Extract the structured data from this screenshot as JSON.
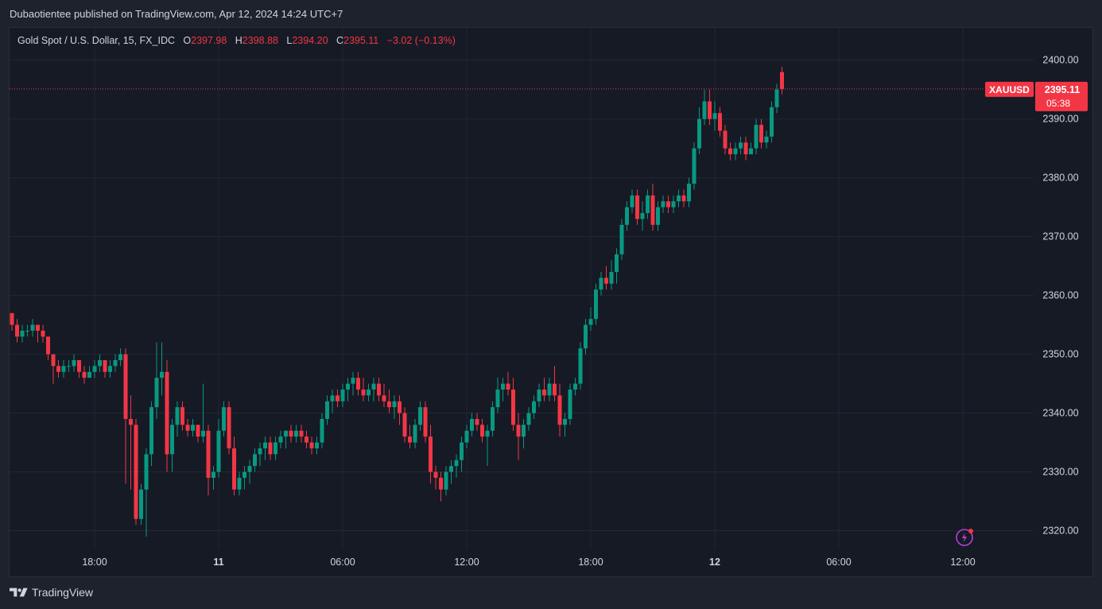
{
  "header": {
    "publisher_line": "Dubaotientee published on TradingView.com, Apr 12, 2024 14:24 UTC+7"
  },
  "legend": {
    "symbol": "Gold Spot / U.S. Dollar, 15, FX_IDC",
    "o_label": "O",
    "o_value": "2397.98",
    "h_label": "H",
    "h_value": "2398.88",
    "l_label": "L",
    "l_value": "2394.20",
    "c_label": "C",
    "c_value": "2395.11",
    "change": "−3.02 (−0.13%)"
  },
  "price_badge": {
    "symbol": "XAUUSD",
    "price": "2395.11",
    "countdown": "05:38"
  },
  "footer": {
    "brand": "TradingView"
  },
  "colors": {
    "up": "#089981",
    "down": "#f23645",
    "grid": "#232733",
    "text": "#d1d4dc",
    "accent": "#b33fd9"
  },
  "icons": {
    "flash": "flash-icon",
    "logo": "tradingview-logo-icon"
  },
  "chart_data": {
    "type": "candlestick",
    "ylim": [
      2312.5,
      2405.5
    ],
    "y_ticks": [
      "2320.00",
      "2330.00",
      "2340.00",
      "2350.00",
      "2360.00",
      "2370.00",
      "2380.00",
      "2390.00",
      "2400.00"
    ],
    "x_ticks": [
      {
        "label": "18:00",
        "bold": false,
        "index": 16
      },
      {
        "label": "11",
        "bold": true,
        "index": 40
      },
      {
        "label": "06:00",
        "bold": false,
        "index": 64
      },
      {
        "label": "12:00",
        "bold": false,
        "index": 88
      },
      {
        "label": "18:00",
        "bold": false,
        "index": 112
      },
      {
        "label": "12",
        "bold": true,
        "index": 136
      },
      {
        "label": "06:00",
        "bold": false,
        "index": 160
      },
      {
        "label": "12:00",
        "bold": false,
        "index": 184
      }
    ],
    "last_price": 2395.11,
    "candles": [
      [
        2357,
        2357,
        2354,
        2355
      ],
      [
        2355,
        2356,
        2352,
        2353
      ],
      [
        2353,
        2355,
        2352,
        2354
      ],
      [
        2354,
        2355,
        2353,
        2354
      ],
      [
        2354,
        2356,
        2353,
        2355
      ],
      [
        2355,
        2355,
        2352,
        2354
      ],
      [
        2354,
        2355,
        2352,
        2353
      ],
      [
        2353,
        2353,
        2349,
        2350
      ],
      [
        2350,
        2350,
        2345,
        2348
      ],
      [
        2348,
        2349,
        2346,
        2347
      ],
      [
        2347,
        2349,
        2346,
        2348
      ],
      [
        2348,
        2349,
        2347,
        2348
      ],
      [
        2348,
        2350,
        2347,
        2349
      ],
      [
        2349,
        2349,
        2346,
        2347
      ],
      [
        2347,
        2348,
        2345,
        2346
      ],
      [
        2346,
        2348,
        2346,
        2347
      ],
      [
        2347,
        2349,
        2346,
        2348
      ],
      [
        2348,
        2350,
        2347,
        2349
      ],
      [
        2349,
        2349,
        2346,
        2347
      ],
      [
        2347,
        2349,
        2346,
        2348
      ],
      [
        2348,
        2350,
        2347,
        2349
      ],
      [
        2349,
        2351,
        2348,
        2350
      ],
      [
        2350,
        2351,
        2328,
        2339
      ],
      [
        2339,
        2343,
        2327,
        2338
      ],
      [
        2338,
        2339,
        2321,
        2322
      ],
      [
        2322,
        2328,
        2321,
        2327
      ],
      [
        2327,
        2334,
        2319,
        2333
      ],
      [
        2333,
        2342,
        2331,
        2341
      ],
      [
        2341,
        2352,
        2339,
        2346
      ],
      [
        2346,
        2352,
        2343,
        2347
      ],
      [
        2347,
        2349,
        2330,
        2333
      ],
      [
        2333,
        2339,
        2330,
        2338
      ],
      [
        2338,
        2342,
        2336,
        2341
      ],
      [
        2341,
        2342,
        2337,
        2338
      ],
      [
        2338,
        2339,
        2336,
        2337
      ],
      [
        2337,
        2339,
        2336,
        2338
      ],
      [
        2338,
        2338,
        2335,
        2336
      ],
      [
        2336,
        2345,
        2335,
        2337
      ],
      [
        2337,
        2338,
        2326,
        2329
      ],
      [
        2329,
        2331,
        2327,
        2330
      ],
      [
        2330,
        2339,
        2329,
        2337
      ],
      [
        2337,
        2342,
        2336,
        2341
      ],
      [
        2341,
        2342,
        2333,
        2334
      ],
      [
        2334,
        2336,
        2326,
        2327
      ],
      [
        2327,
        2330,
        2326,
        2329
      ],
      [
        2329,
        2331,
        2327,
        2330
      ],
      [
        2330,
        2332,
        2328,
        2331
      ],
      [
        2331,
        2334,
        2330,
        2333
      ],
      [
        2333,
        2335,
        2331,
        2334
      ],
      [
        2334,
        2336,
        2332,
        2335
      ],
      [
        2335,
        2336,
        2332,
        2333
      ],
      [
        2333,
        2336,
        2332,
        2335
      ],
      [
        2335,
        2337,
        2334,
        2336
      ],
      [
        2336,
        2337,
        2334,
        2337
      ],
      [
        2337,
        2338,
        2335,
        2336
      ],
      [
        2336,
        2338,
        2335,
        2337
      ],
      [
        2337,
        2338,
        2335,
        2336
      ],
      [
        2336,
        2337,
        2334,
        2335
      ],
      [
        2335,
        2336,
        2333,
        2334
      ],
      [
        2334,
        2336,
        2333,
        2335
      ],
      [
        2335,
        2340,
        2334,
        2339
      ],
      [
        2339,
        2343,
        2338,
        2342
      ],
      [
        2342,
        2344,
        2340,
        2343
      ],
      [
        2343,
        2344,
        2341,
        2342
      ],
      [
        2342,
        2345,
        2341,
        2344
      ],
      [
        2344,
        2346,
        2342,
        2345
      ],
      [
        2345,
        2347,
        2343,
        2346
      ],
      [
        2346,
        2347,
        2343,
        2344
      ],
      [
        2344,
        2346,
        2342,
        2343
      ],
      [
        2343,
        2345,
        2342,
        2344
      ],
      [
        2344,
        2346,
        2342,
        2345
      ],
      [
        2345,
        2346,
        2342,
        2343
      ],
      [
        2343,
        2345,
        2341,
        2342
      ],
      [
        2342,
        2344,
        2340,
        2341
      ],
      [
        2341,
        2343,
        2339,
        2342
      ],
      [
        2342,
        2343,
        2338,
        2340
      ],
      [
        2340,
        2341,
        2335,
        2336
      ],
      [
        2336,
        2338,
        2334,
        2335
      ],
      [
        2335,
        2339,
        2334,
        2338
      ],
      [
        2338,
        2342,
        2337,
        2341
      ],
      [
        2341,
        2342,
        2335,
        2336
      ],
      [
        2336,
        2338,
        2328,
        2330
      ],
      [
        2330,
        2331,
        2327,
        2329
      ],
      [
        2329,
        2330,
        2325,
        2327
      ],
      [
        2327,
        2331,
        2326,
        2330
      ],
      [
        2330,
        2332,
        2328,
        2331
      ],
      [
        2331,
        2333,
        2329,
        2332
      ],
      [
        2332,
        2336,
        2330,
        2335
      ],
      [
        2335,
        2338,
        2334,
        2337
      ],
      [
        2337,
        2340,
        2336,
        2339
      ],
      [
        2339,
        2340,
        2337,
        2338
      ],
      [
        2338,
        2339,
        2335,
        2336
      ],
      [
        2336,
        2338,
        2331,
        2337
      ],
      [
        2337,
        2342,
        2336,
        2341
      ],
      [
        2341,
        2346,
        2340,
        2344
      ],
      [
        2344,
        2346,
        2342,
        2345
      ],
      [
        2345,
        2347,
        2343,
        2344
      ],
      [
        2344,
        2346,
        2337,
        2338
      ],
      [
        2338,
        2340,
        2332,
        2336
      ],
      [
        2336,
        2339,
        2334,
        2338
      ],
      [
        2338,
        2341,
        2337,
        2340
      ],
      [
        2340,
        2343,
        2339,
        2342
      ],
      [
        2342,
        2345,
        2341,
        2344
      ],
      [
        2344,
        2346,
        2342,
        2343
      ],
      [
        2343,
        2346,
        2342,
        2345
      ],
      [
        2345,
        2348,
        2342,
        2343
      ],
      [
        2343,
        2345,
        2336,
        2338
      ],
      [
        2338,
        2340,
        2336,
        2339
      ],
      [
        2339,
        2345,
        2338,
        2344
      ],
      [
        2344,
        2346,
        2343,
        2345
      ],
      [
        2345,
        2352,
        2344,
        2351
      ],
      [
        2351,
        2356,
        2350,
        2355
      ],
      [
        2355,
        2358,
        2354,
        2356
      ],
      [
        2356,
        2362,
        2355,
        2361
      ],
      [
        2361,
        2364,
        2360,
        2363
      ],
      [
        2363,
        2365,
        2361,
        2362
      ],
      [
        2362,
        2366,
        2361,
        2364
      ],
      [
        2364,
        2368,
        2362,
        2367
      ],
      [
        2367,
        2373,
        2366,
        2372
      ],
      [
        2372,
        2376,
        2371,
        2375
      ],
      [
        2375,
        2378,
        2374,
        2377
      ],
      [
        2377,
        2378,
        2372,
        2373
      ],
      [
        2373,
        2376,
        2371,
        2374
      ],
      [
        2374,
        2378,
        2373,
        2377
      ],
      [
        2377,
        2379,
        2371,
        2372
      ],
      [
        2372,
        2376,
        2371,
        2375
      ],
      [
        2375,
        2377,
        2374,
        2376
      ],
      [
        2376,
        2377,
        2374,
        2375
      ],
      [
        2375,
        2377,
        2374,
        2376
      ],
      [
        2376,
        2378,
        2375,
        2377
      ],
      [
        2377,
        2378,
        2375,
        2376
      ],
      [
        2376,
        2380,
        2375,
        2379
      ],
      [
        2379,
        2386,
        2378,
        2385
      ],
      [
        2385,
        2392,
        2384,
        2390
      ],
      [
        2390,
        2395,
        2389,
        2393
      ],
      [
        2393,
        2395,
        2389,
        2390
      ],
      [
        2390,
        2393,
        2388,
        2391
      ],
      [
        2391,
        2392,
        2387,
        2388
      ],
      [
        2388,
        2389,
        2384,
        2385
      ],
      [
        2385,
        2386,
        2383,
        2384
      ],
      [
        2384,
        2386,
        2383,
        2385
      ],
      [
        2385,
        2387,
        2384,
        2386
      ],
      [
        2386,
        2387,
        2383,
        2384
      ],
      [
        2384,
        2386,
        2384,
        2385
      ],
      [
        2385,
        2390,
        2384,
        2389
      ],
      [
        2389,
        2390,
        2385,
        2386
      ],
      [
        2386,
        2388,
        2385,
        2387
      ],
      [
        2387,
        2393,
        2386,
        2392
      ],
      [
        2392,
        2396,
        2391,
        2395
      ],
      [
        2397.98,
        2398.88,
        2394.2,
        2395.11
      ]
    ]
  }
}
